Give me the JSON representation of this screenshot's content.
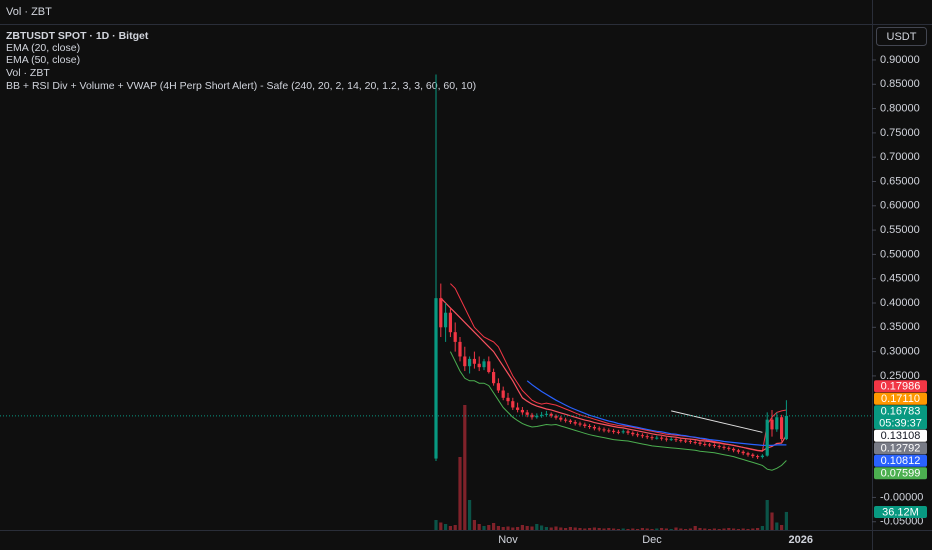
{
  "chart_data": {
    "type": "candlestick",
    "top_pane_label": "Vol · ZBT",
    "title": "ZBTUSDT SPOT · 1D · Bitget",
    "currency_button": "USDT",
    "up_color": "#089981",
    "down_color": "#f23645",
    "categories": [
      null,
      null,
      null,
      null,
      null,
      null,
      null,
      null,
      null,
      null,
      null,
      null,
      null,
      null,
      null,
      "Nov",
      null,
      null,
      null,
      null,
      null,
      null,
      null,
      null,
      null,
      null,
      null,
      null,
      null,
      null,
      null,
      null,
      null,
      null,
      null,
      null,
      null,
      null,
      null,
      null,
      null,
      null,
      null,
      null,
      null,
      "Dec",
      null,
      null,
      null,
      null,
      null,
      null,
      null,
      null,
      null,
      null,
      null,
      null,
      null,
      null,
      null,
      null,
      null,
      null,
      null,
      null,
      null,
      null,
      null,
      null,
      null,
      null,
      null,
      null,
      null,
      null,
      "2026"
    ],
    "ohlc": [
      [
        0.08,
        0.87,
        0.075,
        0.41
      ],
      [
        0.41,
        0.44,
        0.33,
        0.35
      ],
      [
        0.35,
        0.4,
        0.32,
        0.38
      ],
      [
        0.38,
        0.39,
        0.33,
        0.34
      ],
      [
        0.34,
        0.36,
        0.3,
        0.32
      ],
      [
        0.32,
        0.33,
        0.28,
        0.29
      ],
      [
        0.29,
        0.31,
        0.26,
        0.27
      ],
      [
        0.27,
        0.29,
        0.255,
        0.285
      ],
      [
        0.285,
        0.3,
        0.265,
        0.275
      ],
      [
        0.275,
        0.29,
        0.26,
        0.268
      ],
      [
        0.268,
        0.285,
        0.262,
        0.28
      ],
      [
        0.28,
        0.29,
        0.255,
        0.258
      ],
      [
        0.258,
        0.265,
        0.23,
        0.235
      ],
      [
        0.235,
        0.245,
        0.215,
        0.22
      ],
      [
        0.22,
        0.228,
        0.2,
        0.205
      ],
      [
        0.205,
        0.215,
        0.19,
        0.198
      ],
      [
        0.198,
        0.205,
        0.18,
        0.185
      ],
      [
        0.185,
        0.195,
        0.175,
        0.18
      ],
      [
        0.18,
        0.186,
        0.17,
        0.175
      ],
      [
        0.175,
        0.18,
        0.165,
        0.17
      ],
      [
        0.17,
        0.174,
        0.16,
        0.165
      ],
      [
        0.165,
        0.173,
        0.162,
        0.168
      ],
      [
        0.168,
        0.176,
        0.164,
        0.17
      ],
      [
        0.17,
        0.178,
        0.166,
        0.172
      ],
      [
        0.172,
        0.175,
        0.164,
        0.168
      ],
      [
        0.168,
        0.171,
        0.16,
        0.164
      ],
      [
        0.164,
        0.168,
        0.156,
        0.16
      ],
      [
        0.16,
        0.164,
        0.154,
        0.158
      ],
      [
        0.158,
        0.161,
        0.151,
        0.155
      ],
      [
        0.155,
        0.159,
        0.148,
        0.152
      ],
      [
        0.152,
        0.156,
        0.146,
        0.15
      ],
      [
        0.15,
        0.154,
        0.143,
        0.147
      ],
      [
        0.147,
        0.151,
        0.141,
        0.145
      ],
      [
        0.145,
        0.149,
        0.138,
        0.142
      ],
      [
        0.142,
        0.146,
        0.136,
        0.14
      ],
      [
        0.14,
        0.144,
        0.134,
        0.138
      ],
      [
        0.138,
        0.142,
        0.133,
        0.137
      ],
      [
        0.137,
        0.141,
        0.131,
        0.135
      ],
      [
        0.135,
        0.139,
        0.13,
        0.134
      ],
      [
        0.134,
        0.14,
        0.131,
        0.136
      ],
      [
        0.136,
        0.139,
        0.129,
        0.133
      ],
      [
        0.133,
        0.136,
        0.126,
        0.13
      ],
      [
        0.13,
        0.134,
        0.124,
        0.128
      ],
      [
        0.128,
        0.132,
        0.122,
        0.126
      ],
      [
        0.126,
        0.13,
        0.12,
        0.124
      ],
      [
        0.124,
        0.128,
        0.118,
        0.122
      ],
      [
        0.122,
        0.127,
        0.119,
        0.123
      ],
      [
        0.123,
        0.126,
        0.117,
        0.121
      ],
      [
        0.121,
        0.124,
        0.115,
        0.119
      ],
      [
        0.119,
        0.124,
        0.116,
        0.12
      ],
      [
        0.12,
        0.123,
        0.114,
        0.118
      ],
      [
        0.118,
        0.121,
        0.113,
        0.117
      ],
      [
        0.117,
        0.12,
        0.112,
        0.116
      ],
      [
        0.116,
        0.119,
        0.11,
        0.114
      ],
      [
        0.114,
        0.118,
        0.109,
        0.113
      ],
      [
        0.113,
        0.116,
        0.106,
        0.11
      ],
      [
        0.11,
        0.114,
        0.105,
        0.109
      ],
      [
        0.109,
        0.112,
        0.104,
        0.108
      ],
      [
        0.108,
        0.111,
        0.102,
        0.106
      ],
      [
        0.106,
        0.109,
        0.1,
        0.104
      ],
      [
        0.104,
        0.107,
        0.098,
        0.102
      ],
      [
        0.102,
        0.105,
        0.096,
        0.1
      ],
      [
        0.1,
        0.103,
        0.093,
        0.097
      ],
      [
        0.097,
        0.1,
        0.09,
        0.094
      ],
      [
        0.094,
        0.097,
        0.087,
        0.091
      ],
      [
        0.091,
        0.094,
        0.084,
        0.088
      ],
      [
        0.088,
        0.091,
        0.081,
        0.085
      ],
      [
        0.085,
        0.088,
        0.079,
        0.083
      ],
      [
        0.083,
        0.089,
        0.08,
        0.086
      ],
      [
        0.086,
        0.175,
        0.084,
        0.16
      ],
      [
        0.16,
        0.18,
        0.125,
        0.14
      ],
      [
        0.14,
        0.175,
        0.135,
        0.165
      ],
      [
        0.165,
        0.17,
        0.115,
        0.12
      ],
      [
        0.12,
        0.2,
        0.118,
        0.1678
      ],
      null,
      null,
      null
    ],
    "volume_label": "Vol · ZBT",
    "volume": [
      20,
      15,
      12,
      8,
      10,
      146,
      250,
      60,
      20,
      12,
      8,
      10,
      14,
      8,
      6,
      7,
      5,
      6,
      10,
      8,
      7,
      12,
      9,
      6,
      5,
      7,
      5,
      4,
      6,
      5,
      4,
      3,
      4,
      5,
      4,
      3,
      4,
      3,
      2,
      3,
      2,
      3,
      2,
      4,
      3,
      2,
      3,
      4,
      3,
      2,
      5,
      3,
      2,
      3,
      8,
      4,
      3,
      2,
      3,
      2,
      3,
      4,
      3,
      2,
      3,
      2,
      3,
      4,
      8,
      60,
      35,
      15,
      10,
      36.12,
      null,
      null,
      null
    ],
    "volume_lim": [
      0,
      300
    ],
    "volume_tag": {
      "value": 36.12,
      "label": "36.12M"
    },
    "indicators": [
      {
        "name": "EMA (20, close)",
        "color": "#f7525f",
        "values": [
          null,
          0.41,
          0.4,
          0.39,
          0.38,
          0.37,
          0.36,
          0.35,
          0.34,
          0.33,
          0.32,
          0.31,
          0.3,
          0.285,
          0.27,
          0.255,
          0.24,
          0.222,
          0.205,
          0.198,
          0.192,
          0.188,
          0.185,
          0.182,
          0.18,
          0.177,
          0.174,
          0.171,
          0.168,
          0.165,
          0.162,
          0.159,
          0.157,
          0.154,
          0.152,
          0.15,
          0.148,
          0.146,
          0.144,
          0.143,
          0.141,
          0.139,
          0.137,
          0.135,
          0.133,
          0.131,
          0.129,
          0.128,
          0.126,
          0.125,
          0.124,
          0.122,
          0.121,
          0.12,
          0.119,
          0.117,
          0.116,
          0.115,
          0.113,
          0.112,
          0.11,
          0.109,
          0.107,
          0.105,
          0.103,
          0.101,
          0.099,
          0.097,
          0.096,
          0.102,
          0.105,
          0.111,
          0.112,
          0.12792,
          null,
          null,
          null
        ]
      },
      {
        "name": "EMA (50, close)",
        "color": "#2962ff",
        "values": [
          null,
          null,
          null,
          null,
          null,
          null,
          null,
          null,
          null,
          null,
          null,
          null,
          null,
          null,
          null,
          null,
          null,
          null,
          null,
          0.24,
          0.232,
          0.225,
          0.218,
          0.212,
          0.206,
          0.2,
          0.195,
          0.19,
          0.185,
          0.181,
          0.177,
          0.173,
          0.169,
          0.166,
          0.163,
          0.16,
          0.157,
          0.155,
          0.152,
          0.15,
          0.148,
          0.146,
          0.144,
          0.142,
          0.14,
          0.138,
          0.136,
          0.135,
          0.133,
          0.131,
          0.13,
          0.128,
          0.127,
          0.125,
          0.124,
          0.122,
          0.121,
          0.119,
          0.118,
          0.117,
          0.115,
          0.114,
          0.113,
          0.112,
          0.111,
          0.11,
          0.109,
          0.108,
          0.107,
          0.107,
          0.107,
          0.108,
          0.108,
          0.10812,
          null,
          null,
          null
        ]
      }
    ],
    "bb": {
      "name": "BB + RSI Div + Volume + VWAP (4H Perp Short Alert) - Safe (240, 20, 2, 14, 20, 1.2, 3, 3, 60, 60, 10)",
      "upper_color": "#f23645",
      "lower_color": "#4caf50",
      "upper": [
        null,
        null,
        null,
        0.44,
        0.43,
        0.41,
        0.39,
        0.37,
        0.35,
        0.34,
        0.33,
        0.325,
        0.32,
        0.31,
        0.29,
        0.27,
        0.25,
        0.235,
        0.22,
        0.21,
        0.2,
        0.195,
        0.192,
        0.194,
        0.192,
        0.19,
        0.186,
        0.182,
        0.178,
        0.174,
        0.17,
        0.167,
        0.164,
        0.161,
        0.158,
        0.155,
        0.152,
        0.15,
        0.148,
        0.147,
        0.146,
        0.144,
        0.142,
        0.14,
        0.138,
        0.136,
        0.134,
        0.132,
        0.13,
        0.129,
        0.128,
        0.127,
        0.126,
        0.125,
        0.123,
        0.121,
        0.119,
        0.117,
        0.115,
        0.113,
        0.111,
        0.109,
        0.107,
        0.105,
        0.103,
        0.1,
        0.098,
        0.096,
        0.095,
        0.15,
        0.165,
        0.175,
        0.178,
        0.17986,
        null,
        null,
        null
      ],
      "lower": [
        null,
        null,
        null,
        0.3,
        0.28,
        0.26,
        0.245,
        0.24,
        0.24,
        0.235,
        0.235,
        0.23,
        0.215,
        0.2,
        0.185,
        0.175,
        0.165,
        0.158,
        0.152,
        0.148,
        0.145,
        0.146,
        0.148,
        0.15,
        0.149,
        0.15,
        0.147,
        0.144,
        0.141,
        0.138,
        0.135,
        0.132,
        0.129,
        0.127,
        0.125,
        0.123,
        0.121,
        0.119,
        0.118,
        0.117,
        0.116,
        0.114,
        0.112,
        0.11,
        0.108,
        0.106,
        0.105,
        0.104,
        0.103,
        0.102,
        0.101,
        0.1,
        0.099,
        0.098,
        0.097,
        0.095,
        0.094,
        0.093,
        0.092,
        0.09,
        0.088,
        0.086,
        0.084,
        0.081,
        0.078,
        0.075,
        0.072,
        0.069,
        0.066,
        0.058,
        0.056,
        0.06,
        0.066,
        0.07599,
        null,
        null,
        null
      ]
    },
    "trend_line": {
      "color": "#e0e0e0",
      "points": [
        [
          49,
          0.178
        ],
        [
          68,
          0.134
        ]
      ]
    },
    "ylim": [
      -0.067,
      0.974
    ],
    "yticks": [
      {
        "value": 0.9,
        "label": "0.90000"
      },
      {
        "value": 0.85,
        "label": "0.85000"
      },
      {
        "value": 0.8,
        "label": "0.80000"
      },
      {
        "value": 0.75,
        "label": "0.75000"
      },
      {
        "value": 0.7,
        "label": "0.70000"
      },
      {
        "value": 0.65,
        "label": "0.65000"
      },
      {
        "value": 0.6,
        "label": "0.60000"
      },
      {
        "value": 0.55,
        "label": "0.55000"
      },
      {
        "value": 0.5,
        "label": "0.50000"
      },
      {
        "value": 0.45,
        "label": "0.45000"
      },
      {
        "value": 0.4,
        "label": "0.40000"
      },
      {
        "value": 0.35,
        "label": "0.35000"
      },
      {
        "value": 0.3,
        "label": "0.30000"
      },
      {
        "value": 0.25,
        "label": "0.25000"
      },
      {
        "value": 0,
        "label": "-0.00000"
      },
      {
        "value": -0.05,
        "label": "-0.05000"
      }
    ],
    "price_tags": [
      {
        "value": 0.17986,
        "label": "0.17986",
        "color": "#f23645"
      },
      {
        "value": 0.1711,
        "label": "0.17110",
        "color": "#ff9800"
      },
      {
        "value": 0.16783,
        "label": "0.16783",
        "sublabel": "05:39:37",
        "color": "#089981"
      },
      {
        "value": 0.13108,
        "label": "0.13108",
        "color": "#ffffff"
      },
      {
        "value": 0.12792,
        "label": "0.12792",
        "color": "#787b86"
      },
      {
        "value": 0.10812,
        "label": "0.10812",
        "color": "#2962ff"
      },
      {
        "value": 0.07599,
        "label": "0.07599",
        "color": "#4caf50"
      }
    ]
  }
}
